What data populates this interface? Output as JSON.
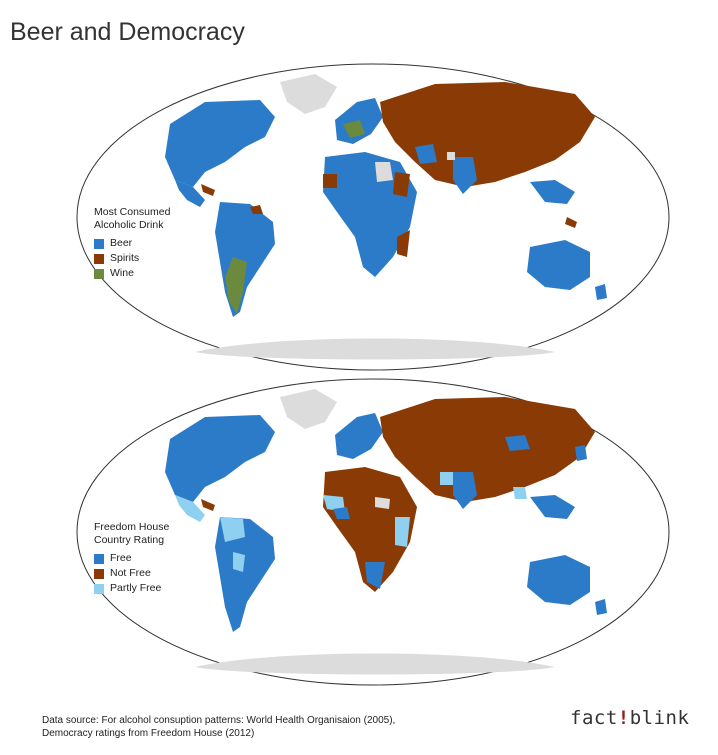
{
  "title": "Beer and Democracy",
  "colors": {
    "blue": "#2b7bc8",
    "brown": "#8a3b05",
    "green": "#6b8a3e",
    "light_blue": "#8fd0f0",
    "no_data": "#dcdcdc"
  },
  "maps": [
    {
      "legend_title": "Most Consumed\nAlcoholic Drink",
      "legend_title_line1": "Most Consumed",
      "legend_title_line2": "Alcoholic Drink",
      "categories": [
        {
          "label": "Beer",
          "color": "#2b7bc8"
        },
        {
          "label": "Spirits",
          "color": "#8a3b05"
        },
        {
          "label": "Wine",
          "color": "#6b8a3e"
        }
      ]
    },
    {
      "legend_title_line1": "Freedom House",
      "legend_title_line2": "Country Rating",
      "categories": [
        {
          "label": "Free",
          "color": "#2b7bc8"
        },
        {
          "label": "Not Free",
          "color": "#8a3b05"
        },
        {
          "label": "Partly Free",
          "color": "#8fd0f0"
        }
      ]
    }
  ],
  "source_line1": "Data source: For alcohol consuption patterns: World Health Organisaion (2005),",
  "source_line2": "Democracy ratings from Freedom House (2012)",
  "brand_left": "fact",
  "brand_mark": "!",
  "brand_right": "blink"
}
